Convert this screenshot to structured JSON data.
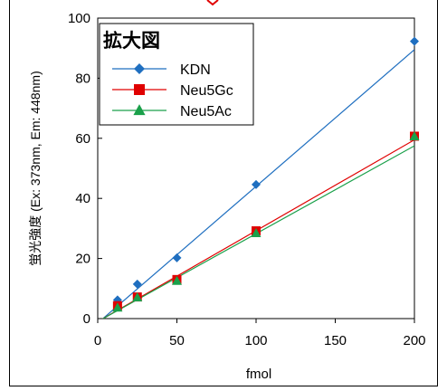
{
  "chart_data": {
    "type": "scatter",
    "xlabel": "fmol",
    "ylabel": "蛍光強度 (Ex: 373nm, Em: 448nm)",
    "xlim": [
      0,
      200
    ],
    "ylim": [
      0,
      100
    ],
    "xticks": [
      0,
      50,
      100,
      150,
      200
    ],
    "yticks": [
      0,
      20,
      40,
      60,
      80,
      100
    ],
    "grid": false,
    "legend": {
      "title": "拡大図",
      "placement": "top-left"
    },
    "series": [
      {
        "name": "KDN",
        "color": "#1f6fc0",
        "marker": "diamond",
        "x": [
          12.5,
          25,
          50,
          100,
          200
        ],
        "y": [
          6.2,
          11.5,
          20.2,
          44.6,
          92.3
        ],
        "trendline": [
          [
            0,
            -1.5
          ],
          [
            200,
            89.5
          ]
        ]
      },
      {
        "name": "Neu5Gc",
        "color": "#e00000",
        "marker": "square",
        "x": [
          12.5,
          25,
          50,
          100,
          200
        ],
        "y": [
          4.3,
          7.2,
          13.0,
          29.2,
          60.7
        ],
        "trendline": [
          [
            0,
            -1.0
          ],
          [
            200,
            59.5
          ]
        ]
      },
      {
        "name": "Neu5Ac",
        "color": "#1aa04a",
        "marker": "triangle",
        "x": [
          12.5,
          25,
          50,
          100,
          200
        ],
        "y": [
          3.6,
          7.0,
          12.5,
          28.4,
          60.6
        ],
        "trendline": [
          [
            0,
            -1.0
          ],
          [
            200,
            57.5
          ]
        ]
      }
    ]
  }
}
